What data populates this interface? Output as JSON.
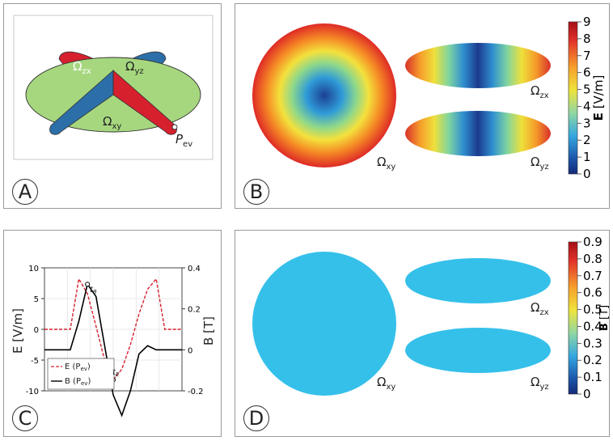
{
  "panels": {
    "A": {
      "letter": "A",
      "labels": {
        "zx": "Ω",
        "zx_sub": "zx",
        "yz": "Ω",
        "yz_sub": "yz",
        "xy": "Ω",
        "xy_sub": "xy",
        "pev": "P",
        "pev_sub": "ev"
      }
    },
    "B": {
      "letter": "B",
      "label_xy": "Ω",
      "label_xy_sub": "xy",
      "label_zx": "Ω",
      "label_zx_sub": "zx",
      "label_yz": "Ω",
      "label_yz_sub": "yz",
      "colorbar": {
        "ticks": [
          "9",
          "8",
          "7",
          "6",
          "5",
          "4",
          "3",
          "2",
          "1",
          "0"
        ],
        "label": "E [V/m]",
        "label_bold": "E",
        "label_rest": " [V/m]"
      }
    },
    "C": {
      "letter": "C"
    },
    "D": {
      "letter": "D",
      "label_xy": "Ω",
      "label_xy_sub": "xy",
      "label_zx": "Ω",
      "label_zx_sub": "zx",
      "label_yz": "Ω",
      "label_yz_sub": "yz",
      "colorbar": {
        "ticks": [
          "0.9",
          "0.8",
          "0.7",
          "0.6",
          "0.5",
          "0.4",
          "0.3",
          "0.2",
          "0.1",
          "0"
        ],
        "label_bold": "B",
        "label_rest": " [T]"
      }
    }
  },
  "colors": {
    "green": "#a6d77f",
    "red": "#d6202e",
    "blue": "#2c6fa8",
    "field_blue": "#35c0ea"
  },
  "chart_data": {
    "type": "line",
    "xlabel": "",
    "ylabel": "E [V/m]",
    "y2label": "B [T]",
    "ylim": [
      -10,
      10
    ],
    "y2lim": [
      -0.2,
      0.4
    ],
    "yticks": [
      "10",
      "5",
      "0",
      "-5",
      "-10"
    ],
    "y2ticks": [
      "0.4",
      "0.2",
      "0",
      "-0.2"
    ],
    "annotations": [
      "t",
      "B",
      "t",
      "E"
    ],
    "series": [
      {
        "name": "E (P",
        "name_sub": "ev",
        "name_end": ")",
        "style": "dashed",
        "color": "#d6202e",
        "x": [
          0,
          0.5,
          1.0,
          1.5,
          2.0,
          2.5,
          3.0,
          3.5,
          4.0,
          4.5,
          5.0,
          5.5,
          6.0,
          6.5,
          7.0,
          7.5,
          8.0
        ],
        "values": [
          0,
          0,
          0,
          0,
          8.2,
          5.8,
          0.5,
          -5.0,
          -8.2,
          -6.5,
          -2.5,
          2.5,
          6.5,
          8.2,
          0,
          0,
          0
        ]
      },
      {
        "name": "B (P",
        "name_sub": "ev",
        "name_end": ")",
        "style": "solid",
        "color": "#000000",
        "x": [
          0,
          0.5,
          1.0,
          1.5,
          2.0,
          2.5,
          3.0,
          3.5,
          4.0,
          4.5,
          5.0,
          5.5,
          6.0,
          6.5,
          7.0,
          7.5,
          8.0
        ],
        "values": [
          0,
          0,
          0,
          0,
          0.14,
          0.32,
          0.26,
          0.02,
          -0.22,
          -0.32,
          -0.2,
          -0.02,
          0.02,
          0,
          0,
          0,
          0
        ]
      }
    ]
  }
}
